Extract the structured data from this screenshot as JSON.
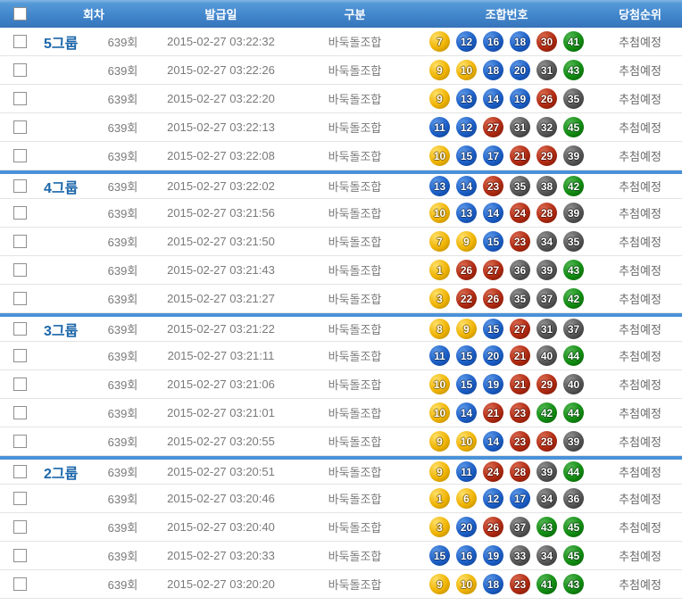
{
  "header": {
    "columns": {
      "round": "회차",
      "issue_date": "발급일",
      "type": "구분",
      "numbers": "조합번호",
      "rank": "당첨순위"
    }
  },
  "colors": {
    "header_bg": "#4286cc",
    "group_divider": "#4a91d9",
    "group_label_text": "#1b66a9",
    "row_text": "#7a7a7a",
    "ball_yellow": "#efb303",
    "ball_blue": "#1c5fc6",
    "ball_red": "#b02a12",
    "ball_gray": "#565656",
    "ball_green": "#128c12"
  },
  "rows": [
    {
      "group": "5그룹",
      "round": "639회",
      "issue_date": "2015-02-27 03:22:32",
      "type": "바둑돌조합",
      "balls": [
        7,
        12,
        16,
        18,
        30,
        41
      ],
      "rank": "추첨예정"
    },
    {
      "round": "639회",
      "issue_date": "2015-02-27 03:22:26",
      "type": "바둑돌조합",
      "balls": [
        9,
        10,
        18,
        20,
        31,
        43
      ],
      "rank": "추첨예정"
    },
    {
      "round": "639회",
      "issue_date": "2015-02-27 03:22:20",
      "type": "바둑돌조합",
      "balls": [
        9,
        13,
        14,
        19,
        26,
        35
      ],
      "rank": "추첨예정"
    },
    {
      "round": "639회",
      "issue_date": "2015-02-27 03:22:13",
      "type": "바둑돌조합",
      "balls": [
        11,
        12,
        27,
        31,
        32,
        45
      ],
      "rank": "추첨예정"
    },
    {
      "round": "639회",
      "issue_date": "2015-02-27 03:22:08",
      "type": "바둑돌조합",
      "balls": [
        10,
        15,
        17,
        21,
        29,
        39
      ],
      "rank": "추첨예정"
    },
    {
      "group": "4그룹",
      "round": "639회",
      "issue_date": "2015-02-27 03:22:02",
      "type": "바둑돌조합",
      "balls": [
        13,
        14,
        23,
        35,
        38,
        42
      ],
      "rank": "추첨예정"
    },
    {
      "round": "639회",
      "issue_date": "2015-02-27 03:21:56",
      "type": "바둑돌조합",
      "balls": [
        10,
        13,
        14,
        24,
        28,
        39
      ],
      "rank": "추첨예정"
    },
    {
      "round": "639회",
      "issue_date": "2015-02-27 03:21:50",
      "type": "바둑돌조합",
      "balls": [
        7,
        9,
        15,
        23,
        34,
        35
      ],
      "rank": "추첨예정"
    },
    {
      "round": "639회",
      "issue_date": "2015-02-27 03:21:43",
      "type": "바둑돌조합",
      "balls": [
        1,
        26,
        27,
        36,
        39,
        43
      ],
      "rank": "추첨예정"
    },
    {
      "round": "639회",
      "issue_date": "2015-02-27 03:21:27",
      "type": "바둑돌조합",
      "balls": [
        3,
        22,
        26,
        35,
        37,
        42
      ],
      "rank": "추첨예정"
    },
    {
      "group": "3그룹",
      "round": "639회",
      "issue_date": "2015-02-27 03:21:22",
      "type": "바둑돌조합",
      "balls": [
        8,
        9,
        15,
        27,
        31,
        37
      ],
      "rank": "추첨예정"
    },
    {
      "round": "639회",
      "issue_date": "2015-02-27 03:21:11",
      "type": "바둑돌조합",
      "balls": [
        11,
        15,
        20,
        21,
        40,
        44
      ],
      "rank": "추첨예정"
    },
    {
      "round": "639회",
      "issue_date": "2015-02-27 03:21:06",
      "type": "바둑돌조합",
      "balls": [
        10,
        15,
        19,
        21,
        29,
        40
      ],
      "rank": "추첨예정"
    },
    {
      "round": "639회",
      "issue_date": "2015-02-27 03:21:01",
      "type": "바둑돌조합",
      "balls": [
        10,
        14,
        21,
        23,
        42,
        44
      ],
      "rank": "추첨예정"
    },
    {
      "round": "639회",
      "issue_date": "2015-02-27 03:20:55",
      "type": "바둑돌조합",
      "balls": [
        9,
        10,
        14,
        23,
        28,
        39
      ],
      "rank": "추첨예정"
    },
    {
      "group": "2그룹",
      "round": "639회",
      "issue_date": "2015-02-27 03:20:51",
      "type": "바둑돌조합",
      "balls": [
        9,
        11,
        24,
        28,
        39,
        44
      ],
      "rank": "추첨예정"
    },
    {
      "round": "639회",
      "issue_date": "2015-02-27 03:20:46",
      "type": "바둑돌조합",
      "balls": [
        1,
        6,
        12,
        17,
        34,
        36
      ],
      "rank": "추첨예정"
    },
    {
      "round": "639회",
      "issue_date": "2015-02-27 03:20:40",
      "type": "바둑돌조합",
      "balls": [
        3,
        20,
        26,
        37,
        43,
        45
      ],
      "rank": "추첨예정"
    },
    {
      "round": "639회",
      "issue_date": "2015-02-27 03:20:33",
      "type": "바둑돌조합",
      "balls": [
        15,
        16,
        19,
        33,
        34,
        45
      ],
      "rank": "추첨예정"
    },
    {
      "round": "639회",
      "issue_date": "2015-02-27 03:20:20",
      "type": "바둑돌조합",
      "balls": [
        9,
        10,
        18,
        23,
        41,
        43
      ],
      "rank": "추첨예정"
    }
  ]
}
